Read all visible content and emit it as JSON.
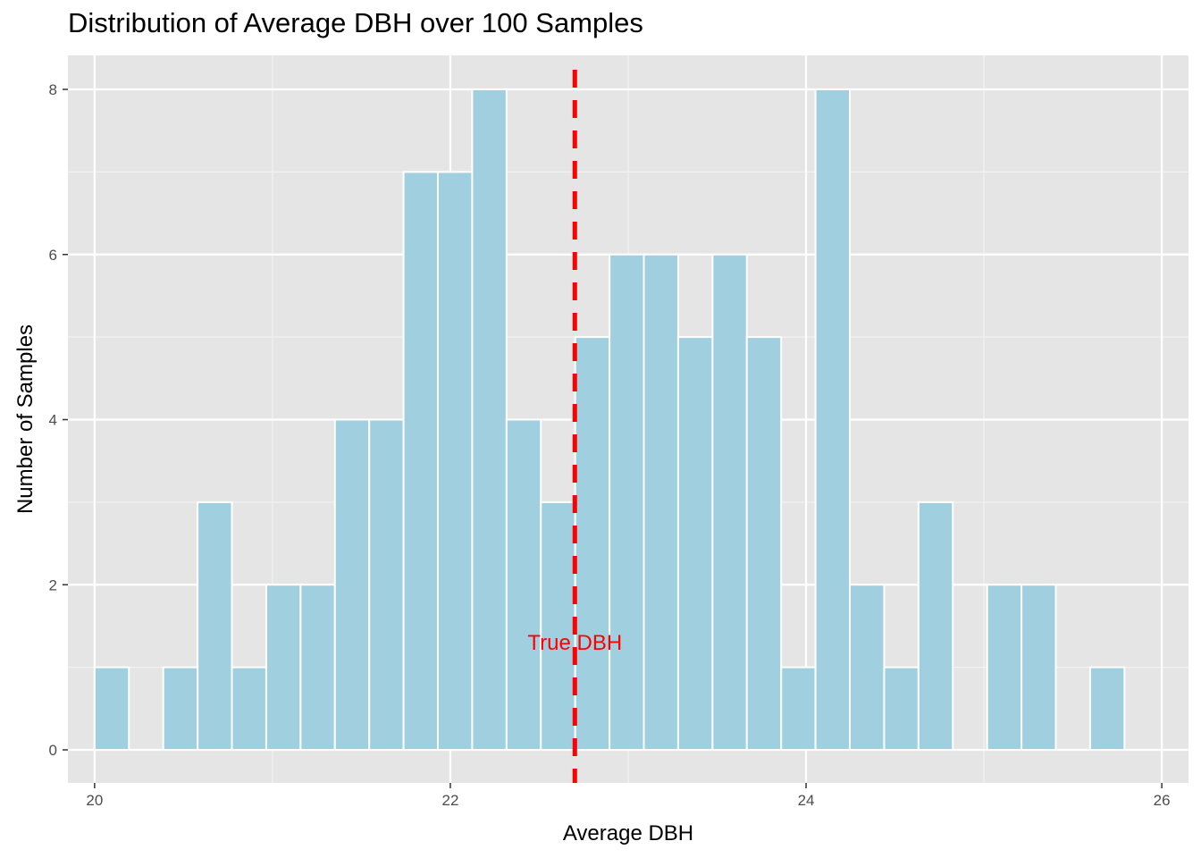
{
  "chart_data": {
    "type": "bar",
    "title": "Distribution of Average DBH over 100 Samples",
    "xlabel": "Average DBH",
    "ylabel": "Number of Samples",
    "xlim": [
      19.85,
      26.15
    ],
    "ylim": [
      0,
      8.4
    ],
    "x_ticks": [
      20,
      22,
      24,
      26
    ],
    "y_ticks": [
      0,
      2,
      4,
      6,
      8
    ],
    "bin_width": 0.193,
    "bin_start": 20.0,
    "counts": [
      1,
      0,
      1,
      3,
      1,
      2,
      2,
      4,
      4,
      7,
      7,
      8,
      4,
      3,
      5,
      6,
      6,
      5,
      6,
      5,
      1,
      8,
      2,
      1,
      3,
      0,
      2,
      2,
      0,
      1
    ],
    "grid": true,
    "bar_fill": "#a0cfe0",
    "bar_stroke": "#ffffff",
    "panel_background": "#e5e5e5",
    "reference_line": {
      "x": 22.7,
      "label": "True DBH",
      "label_y": 1.3,
      "color": "#ff0000",
      "style": "dashed"
    }
  }
}
